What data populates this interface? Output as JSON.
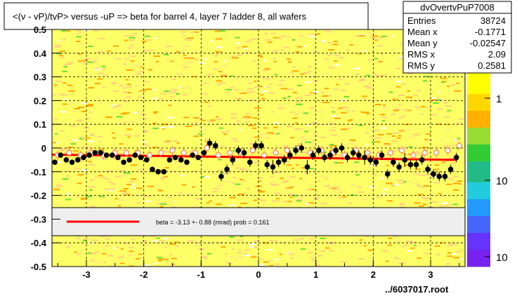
{
  "chart_data": {
    "type": "scatter",
    "title": "<(v - vP)/tvP> versus  -uP => beta for barrel 4, layer 7 ladder 8, all wafers",
    "xlim": [
      -3.6,
      3.6
    ],
    "ylim": [
      -0.5,
      0.5
    ],
    "x_ticks": [
      -3,
      -2,
      -1,
      0,
      1,
      2,
      3
    ],
    "x_tick_labels": [
      "-3",
      "-2",
      "-1",
      "0",
      "1",
      "2",
      "3"
    ],
    "y_ticks": [
      -0.5,
      -0.4,
      -0.3,
      -0.2,
      -0.1,
      0,
      0.1,
      0.2,
      0.3,
      0.4
    ],
    "y_tick_labels": [
      "-0.5",
      "-0.4",
      "-0.3",
      "-0.2",
      "-0.1",
      "0",
      "0.1",
      "0.2",
      "0.3",
      "0.4"
    ],
    "partial_top_label": "0.5",
    "grid": true,
    "colorbar_labels": [
      "1",
      "10",
      "10"
    ],
    "footer": "../6037017.root",
    "stats": {
      "name": "dvOvertvPuP7008",
      "rows": [
        {
          "label": "Entries",
          "value": "38724"
        },
        {
          "label": "Mean x",
          "value": "-0.1771"
        },
        {
          "label": "Mean y",
          "value": "-0.02547"
        },
        {
          "label": "RMS x",
          "value": "2.09"
        },
        {
          "label": "RMS y",
          "value": "0.2581"
        }
      ]
    },
    "fit_legend": "beta =   -3.13 +-  0.88 (mrad) prob = 0.161",
    "fit_line": {
      "x": [
        -3.6,
        3.45
      ],
      "y": [
        -0.028,
        -0.05
      ]
    },
    "black_points": {
      "x": [
        -3.55,
        -3.45,
        -3.35,
        -3.25,
        -3.15,
        -3.05,
        -2.95,
        -2.85,
        -2.75,
        -2.65,
        -2.55,
        -2.45,
        -2.35,
        -2.25,
        -2.15,
        -2.05,
        -1.95,
        -1.85,
        -1.75,
        -1.65,
        -1.55,
        -1.45,
        -1.35,
        -1.25,
        -1.15,
        -1.05,
        -0.95,
        -0.85,
        -0.75,
        -0.65,
        -0.55,
        -0.45,
        -0.35,
        -0.25,
        -0.15,
        -0.05,
        0.05,
        0.15,
        0.25,
        0.35,
        0.45,
        0.55,
        0.65,
        0.75,
        0.85,
        0.95,
        1.05,
        1.15,
        1.25,
        1.35,
        1.45,
        1.55,
        1.65,
        1.75,
        1.85,
        1.95,
        2.05,
        2.15,
        2.25,
        2.35,
        2.45,
        2.55,
        2.65,
        2.75,
        2.85,
        2.95,
        3.05,
        3.15,
        3.25,
        3.35,
        3.45
      ],
      "y": [
        -0.06,
        -0.03,
        -0.05,
        -0.06,
        -0.05,
        -0.04,
        -0.03,
        -0.02,
        -0.02,
        -0.03,
        -0.03,
        -0.04,
        -0.06,
        -0.05,
        -0.03,
        -0.04,
        -0.05,
        -0.09,
        -0.1,
        -0.1,
        -0.05,
        -0.04,
        -0.05,
        -0.06,
        -0.03,
        -0.04,
        -0.02,
        0.02,
        0.01,
        -0.12,
        -0.09,
        -0.05,
        -0.01,
        -0.02,
        -0.06,
        0.01,
        0.01,
        -0.07,
        -0.08,
        -0.06,
        -0.05,
        -0.03,
        -0.01,
        0.0,
        -0.08,
        -0.03,
        -0.01,
        -0.04,
        -0.03,
        -0.01,
        0.0,
        -0.04,
        -0.02,
        -0.03,
        -0.04,
        -0.05,
        -0.06,
        -0.03,
        -0.11,
        -0.06,
        -0.08,
        -0.05,
        -0.07,
        -0.07,
        -0.05,
        -0.09,
        -0.11,
        -0.12,
        -0.12,
        -0.09,
        -0.04
      ],
      "err": [
        0.01,
        0.01,
        0.01,
        0.01,
        0.01,
        0.01,
        0.01,
        0.01,
        0.01,
        0.01,
        0.01,
        0.01,
        0.01,
        0.01,
        0.01,
        0.01,
        0.01,
        0.01,
        0.01,
        0.01,
        0.01,
        0.01,
        0.01,
        0.01,
        0.01,
        0.01,
        0.01,
        0.02,
        0.02,
        0.02,
        0.02,
        0.02,
        0.02,
        0.02,
        0.02,
        0.02,
        0.02,
        0.02,
        0.03,
        0.02,
        0.02,
        0.02,
        0.02,
        0.02,
        0.03,
        0.02,
        0.02,
        0.02,
        0.02,
        0.02,
        0.02,
        0.02,
        0.02,
        0.02,
        0.03,
        0.02,
        0.02,
        0.02,
        0.02,
        0.02,
        0.02,
        0.03,
        0.02,
        0.02,
        0.02,
        0.02,
        0.02,
        0.02,
        0.02,
        0.02,
        0.02
      ]
    },
    "open_points": {
      "x": [
        -3.5,
        -3.3,
        -3.1,
        -2.9,
        -2.7,
        -2.5,
        -2.3,
        -2.1,
        -1.9,
        -1.7,
        -1.5,
        -1.3,
        -1.1,
        -0.9,
        -0.7,
        -0.5,
        -0.3,
        -0.1,
        0.1,
        0.3,
        0.5,
        0.7,
        0.9,
        1.1,
        1.3,
        1.5,
        1.7,
        1.9,
        2.1,
        2.3,
        2.5,
        2.7,
        2.9,
        3.1,
        3.3,
        3.5
      ],
      "y": [
        -0.03,
        -0.02,
        -0.03,
        -0.02,
        -0.03,
        -0.02,
        -0.02,
        -0.02,
        -0.03,
        -0.02,
        -0.01,
        -0.02,
        -0.02,
        0.0,
        -0.03,
        -0.02,
        -0.02,
        -0.01,
        -0.03,
        -0.02,
        -0.01,
        0.0,
        -0.02,
        -0.01,
        -0.02,
        -0.03,
        -0.01,
        -0.02,
        -0.03,
        -0.02,
        -0.01,
        -0.03,
        -0.02,
        -0.02,
        -0.01,
        0.01
      ],
      "err": [
        0.02,
        0.02,
        0.02,
        0.02,
        0.02,
        0.02,
        0.02,
        0.02,
        0.02,
        0.02,
        0.02,
        0.02,
        0.02,
        0.02,
        0.02,
        0.02,
        0.02,
        0.02,
        0.02,
        0.02,
        0.02,
        0.02,
        0.02,
        0.02,
        0.02,
        0.02,
        0.02,
        0.02,
        0.02,
        0.02,
        0.02,
        0.02,
        0.02,
        0.02,
        0.02,
        0.02
      ]
    },
    "colors": {
      "background": "#ffff66",
      "heat_low": "#ffd080",
      "heat_mid": "#ffa500",
      "heat_high": "#66dd33",
      "fit_line": "#ff0000",
      "legend_box": "#eeeeee",
      "open_marker": "#ff8060"
    }
  }
}
